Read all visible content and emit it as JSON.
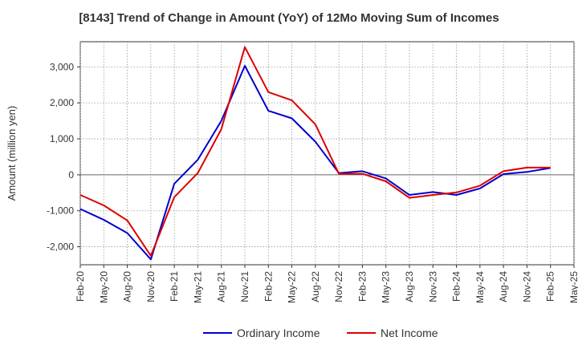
{
  "chart_data": {
    "type": "line",
    "title": "[8143]  Trend of Change in Amount (YoY) of 12Mo Moving Sum of Incomes",
    "xlabel": "",
    "ylabel": "Amount (million yen)",
    "ylim": [
      -2500,
      3700
    ],
    "yticks": [
      -2000,
      -1000,
      0,
      1000,
      2000,
      3000
    ],
    "ytick_labels": [
      "-2,000",
      "-1,000",
      "0",
      "1,000",
      "2,000",
      "3,000"
    ],
    "x_tick_labels": [
      "Feb-20",
      "May-20",
      "Aug-20",
      "Nov-20",
      "Feb-21",
      "May-21",
      "Aug-21",
      "Nov-21",
      "Feb-22",
      "May-22",
      "Aug-22",
      "Nov-22",
      "Feb-23",
      "May-23",
      "Aug-23",
      "Nov-23",
      "Feb-24",
      "May-24",
      "Aug-24",
      "Nov-24",
      "Feb-25",
      "May-25"
    ],
    "x": [
      "Feb-20",
      "May-20",
      "Aug-20",
      "Nov-20",
      "Feb-21",
      "May-21",
      "Aug-21",
      "Nov-21",
      "Feb-22",
      "May-22",
      "Aug-22",
      "Nov-22",
      "Feb-23",
      "May-23",
      "Aug-23",
      "Nov-23",
      "Feb-24",
      "May-24",
      "Aug-24",
      "Nov-24",
      "Feb-25"
    ],
    "grid": true,
    "legend_position": "bottom",
    "series": [
      {
        "name": "Ordinary Income",
        "color": "#0000cc",
        "values": [
          -950,
          -1250,
          -1620,
          -2350,
          -250,
          420,
          1500,
          3030,
          1780,
          1570,
          920,
          50,
          100,
          -100,
          -560,
          -480,
          -560,
          -380,
          20,
          80,
          190
        ]
      },
      {
        "name": "Net Income",
        "color": "#dd0000",
        "values": [
          -560,
          -850,
          -1270,
          -2250,
          -620,
          50,
          1270,
          3550,
          2300,
          2070,
          1400,
          30,
          30,
          -180,
          -640,
          -560,
          -490,
          -300,
          100,
          200,
          200
        ]
      }
    ]
  }
}
